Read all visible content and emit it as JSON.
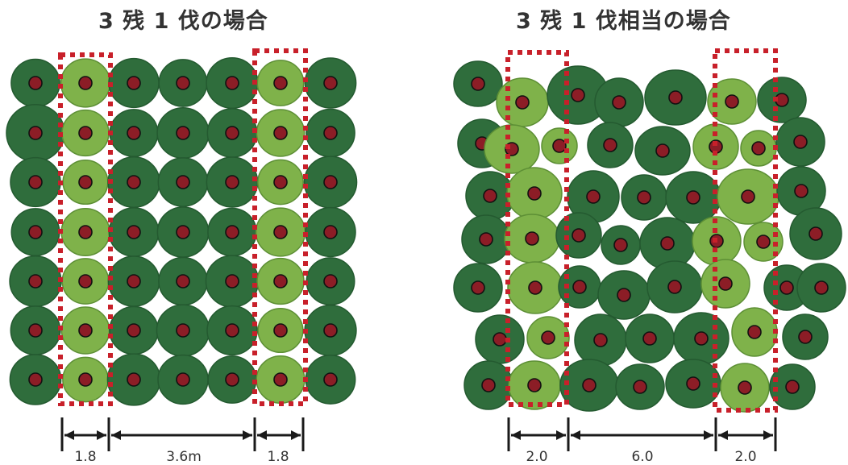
{
  "panels": [
    {
      "title": "3 残 1 伐の場合",
      "dimensions": [
        "1.8",
        "3.6m",
        "1.8"
      ]
    },
    {
      "title": "3 残 1 伐相当の場合",
      "dimensions": [
        "2.0",
        "6.0",
        "2.0"
      ]
    }
  ],
  "colors": {
    "residual_tree": "#2f6d3c",
    "cut_tree": "#7fb24a",
    "trunk": "#8c1d26",
    "strip_outline": "#c8202a",
    "dimension_line": "#1a1a1a"
  }
}
